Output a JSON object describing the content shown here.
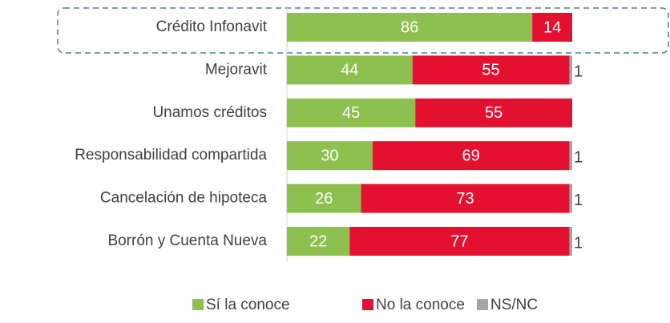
{
  "chart_data": {
    "type": "stacked-bar-horizontal",
    "categories": [
      "Crédito Infonavit",
      "Mejoravit",
      "Unamos créditos",
      "Responsabilidad compartida",
      "Cancelación de hipoteca",
      "Borrón y Cuenta Nueva"
    ],
    "series": [
      {
        "name": "Sí la conoce",
        "color": "#8dc04f",
        "values": [
          86,
          44,
          45,
          30,
          26,
          22
        ]
      },
      {
        "name": "No la conoce",
        "color": "#e3102f",
        "values": [
          14,
          55,
          55,
          69,
          73,
          77
        ]
      },
      {
        "name": "NS/NC",
        "color": "#a5a5a5",
        "values": [
          0,
          1,
          0,
          1,
          1,
          1
        ]
      }
    ],
    "xlim": [
      0,
      100
    ]
  }
}
